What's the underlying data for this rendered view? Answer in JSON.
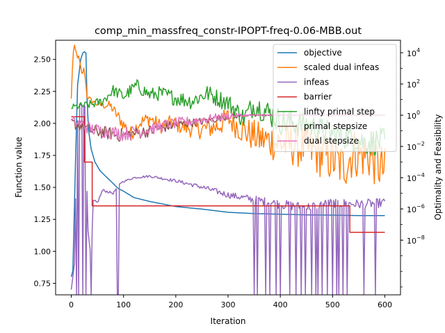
{
  "chart_data": {
    "type": "line",
    "title": "comp_min_massfreq_constr-IPOPT-freq-0.06-MBB.out",
    "xlabel": "Iteration",
    "ylabel": "Function value",
    "y2label": "Optimality and Feasibility",
    "xlim": [
      -30,
      630
    ],
    "ylim": [
      0.66,
      2.65
    ],
    "y2_scale": "log",
    "y2lim_log10": [
      -11.5,
      4.8
    ],
    "x_ticks": [
      0,
      100,
      200,
      300,
      400,
      500,
      600
    ],
    "x_tick_labels": [
      "0",
      "100",
      "200",
      "300",
      "400",
      "500",
      "600"
    ],
    "y_ticks": [
      0.75,
      1.0,
      1.25,
      1.5,
      1.75,
      2.0,
      2.25,
      2.5
    ],
    "y_tick_labels": [
      "0.75",
      "1.00",
      "1.25",
      "1.50",
      "1.75",
      "2.00",
      "2.25",
      "2.50"
    ],
    "y2_ticks_log10": [
      4,
      2,
      0,
      -2,
      -4,
      -6,
      -8
    ],
    "y2_tick_labels": [
      {
        "base": "10",
        "exp": "4"
      },
      {
        "base": "10",
        "exp": "2"
      },
      {
        "base": "10",
        "exp": "0"
      },
      {
        "base": "10",
        "exp": "−2"
      },
      {
        "base": "10",
        "exp": "−4"
      },
      {
        "base": "10",
        "exp": "−6"
      },
      {
        "base": "10",
        "exp": "−8"
      }
    ],
    "legend_position": "top-right",
    "grid": false,
    "series": [
      {
        "name": "objective",
        "axis": "left",
        "color": "#1f77b4",
        "points": [
          [
            0,
            0.8
          ],
          [
            3,
            0.85
          ],
          [
            8,
            1.7
          ],
          [
            12,
            2.3
          ],
          [
            18,
            2.5
          ],
          [
            22,
            2.55
          ],
          [
            25,
            2.56
          ],
          [
            28,
            2.55
          ],
          [
            30,
            2.2
          ],
          [
            33,
            1.95
          ],
          [
            38,
            1.8
          ],
          [
            45,
            1.7
          ],
          [
            55,
            1.63
          ],
          [
            70,
            1.57
          ],
          [
            90,
            1.49
          ],
          [
            100,
            1.47
          ],
          [
            120,
            1.42
          ],
          [
            150,
            1.39
          ],
          [
            200,
            1.35
          ],
          [
            250,
            1.33
          ],
          [
            300,
            1.305
          ],
          [
            350,
            1.295
          ],
          [
            400,
            1.29
          ],
          [
            450,
            1.285
          ],
          [
            500,
            1.283
          ],
          [
            550,
            1.28
          ],
          [
            600,
            1.28
          ]
        ]
      },
      {
        "name": "scaled dual infeas",
        "axis": "right",
        "color": "#ff7f0e",
        "profile": [
          [
            0,
            1.0
          ],
          [
            3,
            3.9
          ],
          [
            6,
            4.3
          ],
          [
            10,
            3.9
          ],
          [
            15,
            3.6
          ],
          [
            20,
            2.6
          ],
          [
            25,
            3.0
          ],
          [
            30,
            1.2
          ],
          [
            40,
            0.9
          ],
          [
            50,
            0.7
          ],
          [
            75,
            0.6
          ],
          [
            100,
            -0.6
          ],
          [
            115,
            -1.2
          ],
          [
            130,
            -0.5
          ],
          [
            150,
            -0.2
          ],
          [
            170,
            -0.7
          ],
          [
            190,
            -0.5
          ],
          [
            220,
            -0.8
          ],
          [
            250,
            -0.9
          ],
          [
            280,
            -0.7
          ],
          [
            300,
            -0.2
          ],
          [
            330,
            -1.0
          ],
          [
            360,
            -1.5
          ],
          [
            400,
            -1.8
          ],
          [
            440,
            -2.0
          ],
          [
            470,
            -2.4
          ],
          [
            500,
            -2.8
          ],
          [
            520,
            -3.3
          ],
          [
            540,
            -2.4
          ],
          [
            570,
            -2.6
          ],
          [
            600,
            -3.6
          ]
        ],
        "noise": [
          [
            0,
            0.2
          ],
          [
            40,
            0.15
          ],
          [
            100,
            0.45
          ],
          [
            200,
            0.5
          ],
          [
            300,
            0.8
          ],
          [
            400,
            1.3
          ],
          [
            500,
            1.6
          ],
          [
            600,
            1.6
          ]
        ]
      },
      {
        "name": "infeas",
        "axis": "right",
        "color": "#9467bd",
        "profile": [
          [
            0,
            -11.2
          ],
          [
            6,
            -9.5
          ],
          [
            10,
            -1.2
          ],
          [
            15,
            0.8
          ],
          [
            20,
            0.7
          ],
          [
            26,
            0.6
          ],
          [
            32,
            -7.5
          ],
          [
            38,
            -9.2
          ],
          [
            42,
            -5.5
          ],
          [
            50,
            -5.6
          ],
          [
            60,
            -4.8
          ],
          [
            80,
            -5.0
          ],
          [
            95,
            -4.3
          ],
          [
            120,
            -4.0
          ],
          [
            150,
            -3.9
          ],
          [
            200,
            -4.2
          ],
          [
            250,
            -4.6
          ],
          [
            300,
            -5.1
          ],
          [
            350,
            -5.4
          ],
          [
            400,
            -5.7
          ],
          [
            450,
            -5.9
          ],
          [
            500,
            -5.6
          ],
          [
            550,
            -5.7
          ],
          [
            600,
            -5.6
          ]
        ],
        "noise": [
          [
            0,
            0.1
          ],
          [
            45,
            0.1
          ],
          [
            100,
            0.05
          ],
          [
            200,
            0.1
          ],
          [
            300,
            0.2
          ],
          [
            400,
            0.3
          ],
          [
            500,
            0.3
          ],
          [
            600,
            0.3
          ]
        ],
        "spikes_x": [
          10,
          14,
          22,
          28,
          38,
          88,
          90,
          350,
          356,
          365,
          372,
          380,
          385,
          392,
          400,
          405,
          418,
          425,
          430,
          440,
          448,
          455,
          460,
          468,
          472,
          480,
          490,
          500,
          508,
          512,
          520,
          528,
          535,
          541,
          549,
          560,
          569,
          575,
          582,
          589,
          597
        ],
        "spike_floor_log10": -11.5
      },
      {
        "name": "barrier",
        "axis": "right",
        "color": "#d62728",
        "points": [
          [
            0,
            -0.1
          ],
          [
            25,
            -0.1
          ],
          [
            25,
            -3.0
          ],
          [
            40,
            -3.0
          ],
          [
            40,
            -5.8
          ],
          [
            533,
            -5.8
          ],
          [
            533,
            -7.5
          ],
          [
            600,
            -7.5
          ]
        ]
      },
      {
        "name": "linfty primal step",
        "axis": "right",
        "color": "#2ca02c",
        "profile": [
          [
            0,
            0.5
          ],
          [
            40,
            0.7
          ],
          [
            60,
            0.9
          ],
          [
            80,
            1.6
          ],
          [
            100,
            1.2
          ],
          [
            125,
            1.9
          ],
          [
            150,
            1.3
          ],
          [
            170,
            1.4
          ],
          [
            200,
            1.1
          ],
          [
            230,
            0.9
          ],
          [
            260,
            1.4
          ],
          [
            280,
            1.1
          ],
          [
            300,
            0.8
          ],
          [
            330,
            -0.2
          ],
          [
            350,
            0.7
          ],
          [
            380,
            0.1
          ],
          [
            400,
            -0.4
          ],
          [
            430,
            -0.5
          ],
          [
            460,
            -0.7
          ],
          [
            500,
            -1.2
          ],
          [
            530,
            -1.4
          ],
          [
            560,
            -1.7
          ],
          [
            600,
            -1.7
          ]
        ],
        "noise": [
          [
            0,
            0.2
          ],
          [
            100,
            0.4
          ],
          [
            200,
            0.5
          ],
          [
            300,
            0.6
          ],
          [
            400,
            0.9
          ],
          [
            500,
            0.8
          ],
          [
            600,
            0.9
          ]
        ]
      },
      {
        "name": "primal stepsize",
        "axis": "right",
        "color": "#8c564b",
        "profile": [
          [
            0,
            -0.5
          ],
          [
            20,
            -0.7
          ],
          [
            40,
            -1.0
          ],
          [
            100,
            -1.3
          ],
          [
            150,
            -1.0
          ],
          [
            200,
            -0.6
          ],
          [
            250,
            -0.4
          ],
          [
            300,
            -0.1
          ],
          [
            340,
            0.0
          ],
          [
            350,
            0.0
          ],
          [
            600,
            0.0
          ]
        ],
        "noise": [
          [
            0,
            0.35
          ],
          [
            100,
            0.45
          ],
          [
            200,
            0.3
          ],
          [
            300,
            0.2
          ],
          [
            340,
            0.05
          ],
          [
            600,
            0.02
          ]
        ]
      },
      {
        "name": "dual stepsize",
        "axis": "right",
        "color": "#e377c2",
        "profile": [
          [
            0,
            -0.4
          ],
          [
            20,
            -0.6
          ],
          [
            40,
            -0.9
          ],
          [
            100,
            -1.2
          ],
          [
            150,
            -0.9
          ],
          [
            200,
            -0.5
          ],
          [
            250,
            -0.3
          ],
          [
            300,
            -0.05
          ],
          [
            340,
            0.0
          ],
          [
            350,
            0.0
          ],
          [
            600,
            0.0
          ]
        ],
        "noise": [
          [
            0,
            0.4
          ],
          [
            100,
            0.45
          ],
          [
            200,
            0.35
          ],
          [
            300,
            0.25
          ],
          [
            340,
            0.05
          ],
          [
            600,
            0.03
          ]
        ]
      }
    ]
  }
}
